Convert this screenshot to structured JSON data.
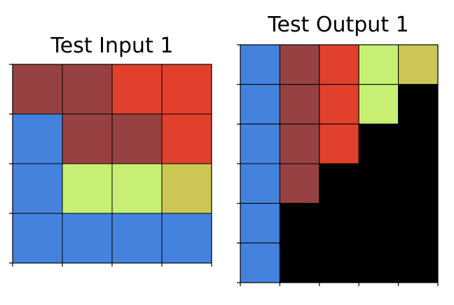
{
  "palette": {
    "0": "#000000",
    "1": "#4483dd",
    "2": "#e0402c",
    "3": "#c6ef73",
    "4": "#cbc655",
    "5": "#974142"
  },
  "panels": [
    {
      "title": "Test Input 1",
      "grid": [
        [
          5,
          5,
          2,
          2
        ],
        [
          1,
          5,
          5,
          2
        ],
        [
          1,
          3,
          3,
          4
        ],
        [
          1,
          1,
          1,
          1
        ]
      ]
    },
    {
      "title": "Test Output 1",
      "grid": [
        [
          1,
          5,
          2,
          3,
          4
        ],
        [
          1,
          5,
          2,
          3,
          0
        ],
        [
          1,
          5,
          2,
          0,
          0
        ],
        [
          1,
          5,
          0,
          0,
          0
        ],
        [
          1,
          0,
          0,
          0,
          0
        ],
        [
          1,
          0,
          0,
          0,
          0
        ]
      ]
    }
  ]
}
